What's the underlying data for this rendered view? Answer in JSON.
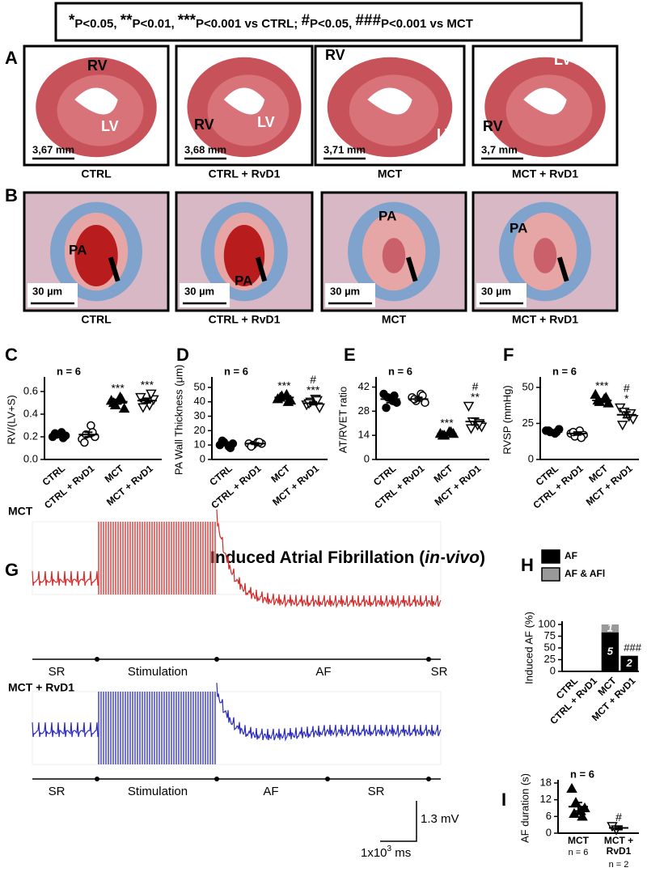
{
  "legend": {
    "parts": [
      "*",
      "P<0.05, ",
      "**",
      "P<0.01, ",
      "***",
      "P<0.001 vs CTRL; ",
      "#",
      "P<0.05, ",
      "###",
      "P<0.001 vs MCT"
    ]
  },
  "panel_a": {
    "letter": "A",
    "images": [
      {
        "rv": "RV",
        "lv": "LV",
        "scale": "3,67 mm",
        "caption": "CTRL"
      },
      {
        "rv": "RV",
        "lv": "LV",
        "scale": "3,68 mm",
        "caption": "CTRL + RvD1"
      },
      {
        "rv": "RV",
        "lv": "LV",
        "scale": "3,71 mm",
        "caption": "MCT"
      },
      {
        "rv": "RV",
        "lv": "LV",
        "scale": "3,7 mm",
        "caption": "MCT + RvD1"
      }
    ]
  },
  "panel_b": {
    "letter": "B",
    "images": [
      {
        "vessel": "PA",
        "scale": "30 µm",
        "caption": "CTRL"
      },
      {
        "vessel": "PA",
        "scale": "30 µm",
        "caption": "CTRL + RvD1"
      },
      {
        "vessel": "PA",
        "scale": "30 µm",
        "caption": "MCT"
      },
      {
        "vessel": "PA",
        "scale": "30 µm",
        "caption": "MCT + RvD1"
      }
    ]
  },
  "chart_data": [
    {
      "type": "dot",
      "letter": "C",
      "note": "n = 6",
      "ylabel": "RV/(LV+S)",
      "categories": [
        "CTRL",
        "CTRL + RvD1",
        "MCT",
        "MCT + RvD1"
      ],
      "markers": [
        "circle-filled",
        "circle-open",
        "triangle-filled",
        "triangle-down-open"
      ],
      "ylim": [
        0,
        0.7
      ],
      "yticks": [
        {
          "value": 0,
          "label": "0.0"
        },
        0.2,
        0.4,
        0.6
      ],
      "points": [
        [
          0.2,
          0.22,
          0.24,
          0.21,
          0.23,
          0.19
        ],
        [
          0.18,
          0.22,
          0.3,
          0.2,
          0.15,
          0.24
        ],
        [
          0.52,
          0.48,
          0.55,
          0.45,
          0.5,
          0.53
        ],
        [
          0.55,
          0.5,
          0.48,
          0.53,
          0.46,
          0.58
        ]
      ],
      "means": [
        0.22,
        0.22,
        0.51,
        0.52
      ],
      "errors": [
        0.01,
        0.02,
        0.02,
        0.02
      ],
      "annotations": [
        [],
        [],
        [
          "***"
        ],
        [
          "***"
        ]
      ]
    },
    {
      "type": "dot",
      "letter": "D",
      "note": "n = 6",
      "ylabel": "PA Wall Thickness (μm)",
      "categories": [
        "CTRL",
        "CTRL + RvD1",
        "MCT",
        "MCT + RvD1"
      ],
      "markers": [
        "circle-filled",
        "circle-open",
        "triangle-filled",
        "triangle-down-open"
      ],
      "ylim": [
        0,
        55
      ],
      "yticks": [
        0,
        10,
        20,
        30,
        40,
        50
      ],
      "points": [
        [
          10,
          12,
          9,
          11,
          13,
          8
        ],
        [
          11,
          10,
          12,
          11,
          9,
          12
        ],
        [
          42,
          44,
          45,
          41,
          43,
          40
        ],
        [
          38,
          40,
          42,
          36,
          39,
          41
        ]
      ],
      "means": [
        11,
        11,
        43,
        39
      ],
      "errors": [
        1,
        0.5,
        1,
        1
      ],
      "annotations": [
        [],
        [],
        [
          "***"
        ],
        [
          "#",
          "***"
        ]
      ]
    },
    {
      "type": "dot",
      "letter": "E",
      "note": "n = 6",
      "ylabel": "AT/RVET ratio",
      "categories": [
        "CTRL",
        "CTRL + RvD1",
        "MCT",
        "MCT + RvD1"
      ],
      "markers": [
        "circle-filled",
        "circle-open",
        "triangle-filled",
        "triangle-down-open"
      ],
      "ylim": [
        0,
        46
      ],
      "yticks": [
        0,
        14,
        28,
        42
      ],
      "points": [
        [
          38,
          36,
          34,
          33,
          30,
          37
        ],
        [
          36,
          34,
          38,
          33,
          35,
          37
        ],
        [
          15,
          14,
          16,
          15,
          14,
          16
        ],
        [
          31,
          22,
          20,
          19,
          18,
          21
        ]
      ],
      "means": [
        35,
        35,
        15,
        22
      ],
      "errors": [
        2,
        1,
        0.5,
        2
      ],
      "annotations": [
        [],
        [],
        [
          "***"
        ],
        [
          "#",
          "**"
        ]
      ]
    },
    {
      "type": "dot",
      "letter": "F",
      "note": "n = 6",
      "ylabel": "RVSP (mmHg)",
      "categories": [
        "CTRL",
        "CTRL + RvD1",
        "MCT",
        "MCT + RvD1"
      ],
      "markers": [
        "circle-filled",
        "circle-open",
        "triangle-filled",
        "triangle-down-open"
      ],
      "ylim": [
        0,
        55
      ],
      "yticks": [
        0,
        25,
        50
      ],
      "points": [
        [
          20,
          19,
          18,
          21,
          20,
          19
        ],
        [
          18,
          16,
          20,
          17,
          19,
          15
        ],
        [
          45,
          40,
          42,
          39,
          41,
          43
        ],
        [
          36,
          33,
          30,
          28,
          24,
          32
        ]
      ],
      "means": [
        19,
        18,
        41,
        31
      ],
      "errors": [
        0.5,
        1,
        1,
        2
      ],
      "annotations": [
        [],
        [],
        [
          "***"
        ],
        [
          "#",
          "*"
        ]
      ]
    },
    {
      "type": "stacked-bar",
      "letter": "H",
      "ylabel": "Induced AF (%)",
      "categories": [
        "CTRL",
        "CTRL + RvD1",
        "MCT",
        "MCT + RvD1"
      ],
      "ylim": [
        0,
        100
      ],
      "yticks": [
        0,
        25,
        50,
        75,
        100
      ],
      "series": [
        {
          "name": "AF",
          "color": "#000000",
          "values": [
            0,
            0,
            83.3,
            33.3
          ],
          "counts": [
            null,
            null,
            5,
            2
          ]
        },
        {
          "name": "AF & AFl",
          "color": "#999999",
          "values": [
            0,
            0,
            16.7,
            0
          ],
          "counts": [
            null,
            null,
            1,
            null
          ]
        }
      ],
      "annotations": [
        null,
        null,
        null,
        "###"
      ]
    },
    {
      "type": "dot",
      "letter": "I",
      "note": "n = 6",
      "ylabel": "AF duration (s)",
      "categories": [
        "MCT",
        "MCT + RvD1"
      ],
      "group_n": [
        "n = 6",
        "n = 2"
      ],
      "markers": [
        "triangle-filled",
        "triangle-down-open"
      ],
      "ylim": [
        0,
        18
      ],
      "yticks": [
        0,
        6,
        12,
        18
      ],
      "points": [
        [
          16,
          11,
          8,
          9,
          7,
          6
        ],
        [
          2.5,
          1.3
        ]
      ],
      "means": [
        9.5,
        1.9
      ],
      "errors": [
        1.5,
        0.6
      ],
      "annotations": [
        [],
        [
          "#"
        ]
      ]
    }
  ],
  "panel_g": {
    "letter": "G",
    "title": {
      "parts": [
        "Induced Atrial Fibrillation (",
        "in-vivo",
        ")"
      ]
    },
    "traces": [
      {
        "label": "MCT",
        "color": "#d42a2a",
        "phases": [
          "SR",
          "Stimulation",
          "AF",
          "SR"
        ]
      },
      {
        "label": "MCT + RvD1",
        "color": "#2b2bbf",
        "phases": [
          "SR",
          "Stimulation",
          "AF",
          "SR"
        ]
      }
    ],
    "scale": {
      "voltage": "1.3 mV",
      "time_parts": [
        "1x10",
        "3",
        " ms"
      ]
    }
  }
}
